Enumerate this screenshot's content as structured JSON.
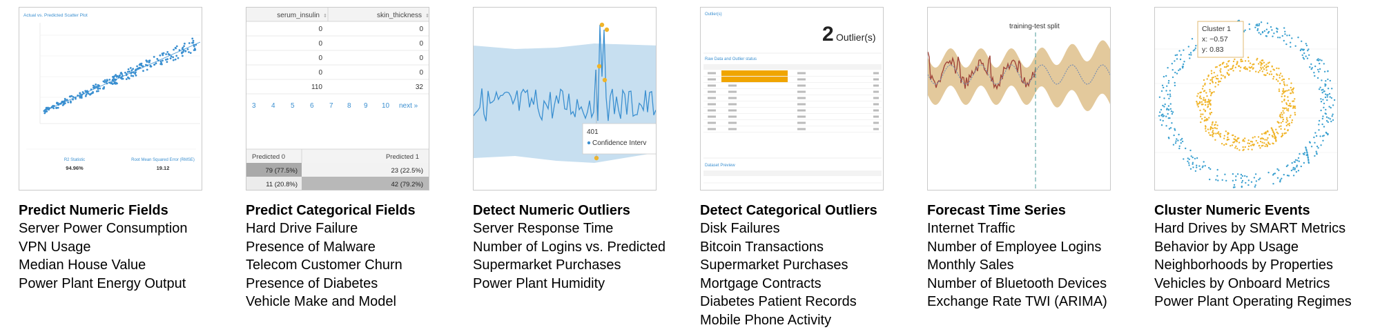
{
  "colors": {
    "accent_blue": "#3a8fd0",
    "band_blue": "#b8d6ec",
    "orange": "#f0a500",
    "tan_band": "#e2c99a",
    "dark_red": "#a0453a"
  },
  "cards": [
    {
      "title": "Predict Numeric Fields",
      "items": [
        "Server Power Consumption",
        "VPN Usage",
        "Median House Value",
        "Power Plant Energy Output"
      ],
      "thumb": {
        "heading": "Actual vs. Predicted Scatter Plot",
        "stat1_label": "R2 Statistic",
        "stat1_value": "94.96%",
        "stat2_label": "Root Mean Squared Error (RMSE)",
        "stat2_value": "19.12"
      }
    },
    {
      "title": "Predict Categorical Fields",
      "items": [
        "Hard Drive Failure",
        "Presence of Malware",
        "Telecom Customer Churn",
        "Presence of Diabetes",
        "Vehicle Make and Model"
      ],
      "thumb": {
        "col1": "serum_insulin",
        "col2": "skin_thickness",
        "rows": [
          [
            "0",
            "0"
          ],
          [
            "0",
            "0"
          ],
          [
            "0",
            "0"
          ],
          [
            "0",
            "0"
          ],
          [
            "110",
            "32"
          ]
        ],
        "pages": [
          "3",
          "4",
          "5",
          "6",
          "7",
          "8",
          "9",
          "10",
          "next »"
        ],
        "pred_col1": "Predicted 0",
        "pred_col2": "Predicted 1",
        "pred_rows": [
          [
            "79 (77.5%)",
            "23 (22.5%)"
          ],
          [
            "11 (20.8%)",
            "42 (79.2%)"
          ]
        ]
      }
    },
    {
      "title": "Detect Numeric Outliers",
      "items": [
        "Server Response Time",
        "Number of Logins vs. Predicted",
        "Supermarket Purchases",
        "Power Plant Humidity"
      ],
      "thumb": {
        "tooltip_value": "401",
        "tooltip_label": "Confidence Interv"
      }
    },
    {
      "title": "Detect Categorical Outliers",
      "items": [
        "Disk Failures",
        "Bitcoin Transactions",
        "Supermarket Purchases",
        "Mortgage Contracts",
        "Diabetes Patient Records",
        "Mobile Phone Activity"
      ],
      "thumb": {
        "header_small": "Outlier(s)",
        "count": "2",
        "count_label": "Outlier(s)",
        "section1": "Raw Data and Outlier status",
        "section2": "Dataset Preview"
      }
    },
    {
      "title": "Forecast Time Series",
      "items": [
        "Internet Traffic",
        "Number of Employee Logins",
        "Monthly Sales",
        "Number of Bluetooth Devices",
        "Exchange Rate TWI (ARIMA)"
      ],
      "thumb": {
        "split_label": "training-test split"
      }
    },
    {
      "title": "Cluster Numeric Events",
      "items": [
        "Hard Drives by SMART Metrics",
        "Behavior by App Usage",
        "Neighborhoods by Properties",
        "Vehicles by Onboard Metrics",
        "Power Plant Operating Regimes"
      ],
      "thumb": {
        "tooltip_title": "Cluster 1",
        "tooltip_x": "x: −0.57",
        "tooltip_y": "y: 0.83"
      }
    }
  ]
}
